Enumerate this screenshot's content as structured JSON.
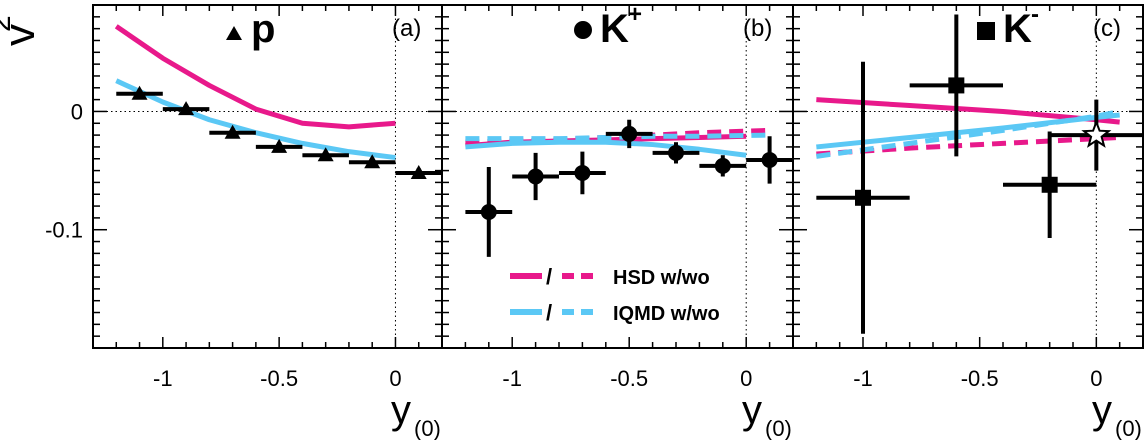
{
  "ylabel": {
    "main": "v",
    "sub": "2"
  },
  "xlabel": {
    "main": "y",
    "sub": "(0)"
  },
  "y_ticks": [
    {
      "value": 0,
      "label": "0"
    },
    {
      "value": -0.1,
      "label": "-0.1"
    }
  ],
  "x_ticks": [
    {
      "value": -1,
      "label": "-1"
    },
    {
      "value": -0.5,
      "label": "-0.5"
    },
    {
      "value": 0,
      "label": "0"
    }
  ],
  "legend": [
    {
      "label": "HSD w/wo",
      "separator": "/",
      "color": "#e8198b"
    },
    {
      "label": "IQMD w/wo",
      "separator": "/",
      "color": "#5bc8f5"
    }
  ],
  "colors": {
    "hsd": "#e8198b",
    "iqmd": "#5bc8f5",
    "data": "#000000"
  },
  "chart_data": [
    {
      "type": "scatter",
      "panel": "(a)",
      "particle": "p",
      "marker": "triangle",
      "xlim": [
        -1.3,
        0.2
      ],
      "ylim": [
        -0.2,
        0.09
      ],
      "points": [
        {
          "x": -1.1,
          "y": 0.015,
          "xerr": 0.1,
          "yerr": 0.004
        },
        {
          "x": -0.9,
          "y": 0.002,
          "xerr": 0.1,
          "yerr": 0.004
        },
        {
          "x": -0.7,
          "y": -0.018,
          "xerr": 0.1,
          "yerr": 0.004
        },
        {
          "x": -0.5,
          "y": -0.03,
          "xerr": 0.1,
          "yerr": 0.004
        },
        {
          "x": -0.3,
          "y": -0.037,
          "xerr": 0.1,
          "yerr": 0.004
        },
        {
          "x": -0.1,
          "y": -0.043,
          "xerr": 0.1,
          "yerr": 0.004
        },
        {
          "x": 0.1,
          "y": -0.052,
          "xerr": 0.1,
          "yerr": 0.004
        }
      ],
      "series": [
        {
          "model": "HSD",
          "style": "solid",
          "x": [
            -1.2,
            -1.0,
            -0.8,
            -0.6,
            -0.4,
            -0.2,
            0.0
          ],
          "y": [
            0.072,
            0.045,
            0.022,
            0.002,
            -0.01,
            -0.013,
            -0.01
          ]
        },
        {
          "model": "IQMD",
          "style": "solid",
          "x": [
            -1.2,
            -1.0,
            -0.8,
            -0.6,
            -0.4,
            -0.2,
            0.0
          ],
          "y": [
            0.026,
            0.008,
            -0.007,
            -0.018,
            -0.027,
            -0.034,
            -0.039
          ]
        }
      ]
    },
    {
      "type": "scatter",
      "panel": "(b)",
      "particle": "K",
      "charge": "+",
      "marker": "circle",
      "xlim": [
        -1.3,
        0.2
      ],
      "ylim": [
        -0.2,
        0.09
      ],
      "points": [
        {
          "x": -1.1,
          "y": -0.085,
          "xerr": 0.1,
          "yerr": 0.038
        },
        {
          "x": -0.9,
          "y": -0.055,
          "xerr": 0.1,
          "yerr": 0.02
        },
        {
          "x": -0.7,
          "y": -0.052,
          "xerr": 0.1,
          "yerr": 0.018
        },
        {
          "x": -0.5,
          "y": -0.019,
          "xerr": 0.1,
          "yerr": 0.012
        },
        {
          "x": -0.3,
          "y": -0.035,
          "xerr": 0.1,
          "yerr": 0.009
        },
        {
          "x": -0.1,
          "y": -0.046,
          "xerr": 0.1,
          "yerr": 0.009
        },
        {
          "x": 0.1,
          "y": -0.041,
          "xerr": 0.1,
          "yerr": 0.02
        }
      ],
      "series": [
        {
          "model": "HSD",
          "style": "solid",
          "x": [
            -1.2,
            -1.0,
            -0.8,
            -0.6,
            -0.4,
            -0.2,
            0.0
          ],
          "y": [
            -0.029,
            -0.026,
            -0.025,
            -0.024,
            -0.023,
            -0.022,
            -0.021
          ]
        },
        {
          "model": "HSD",
          "style": "dashed",
          "x": [
            -1.2,
            -1.0,
            -0.8,
            -0.6,
            -0.4,
            -0.2,
            0.1
          ],
          "y": [
            -0.026,
            -0.025,
            -0.024,
            -0.022,
            -0.02,
            -0.018,
            -0.016
          ]
        },
        {
          "model": "IQMD",
          "style": "solid",
          "x": [
            -1.2,
            -1.0,
            -0.8,
            -0.6,
            -0.4,
            -0.2,
            0.0
          ],
          "y": [
            -0.03,
            -0.027,
            -0.026,
            -0.026,
            -0.028,
            -0.032,
            -0.037
          ]
        },
        {
          "model": "IQMD",
          "style": "dashed",
          "x": [
            -1.2,
            -1.0,
            -0.8,
            -0.6,
            -0.4,
            -0.2,
            0.1
          ],
          "y": [
            -0.023,
            -0.023,
            -0.023,
            -0.022,
            -0.021,
            -0.021,
            -0.02
          ]
        }
      ]
    },
    {
      "type": "scatter",
      "panel": "(c)",
      "particle": "K",
      "charge": "-",
      "marker": "square",
      "xlim": [
        -1.3,
        0.2
      ],
      "ylim": [
        -0.2,
        0.09
      ],
      "points": [
        {
          "x": -1.0,
          "y": -0.073,
          "xerr": 0.2,
          "yerr": 0.115
        },
        {
          "x": -0.6,
          "y": 0.022,
          "xerr": 0.2,
          "yerr": 0.06
        },
        {
          "x": -0.2,
          "y": -0.062,
          "xerr": 0.2,
          "yerr": 0.045
        }
      ],
      "open_points": [
        {
          "x": 0.0,
          "y": -0.02,
          "xerr": 0.2,
          "yerr": 0.03,
          "marker": "star"
        }
      ],
      "series": [
        {
          "model": "HSD",
          "style": "solid",
          "x": [
            -1.2,
            -0.8,
            -0.4,
            0.0,
            0.1
          ],
          "y": [
            0.01,
            0.005,
            0.0,
            -0.007,
            -0.009
          ]
        },
        {
          "model": "HSD",
          "style": "dashed",
          "x": [
            -1.2,
            -0.8,
            -0.4,
            0.0,
            0.1
          ],
          "y": [
            -0.036,
            -0.031,
            -0.027,
            -0.023,
            -0.022
          ]
        },
        {
          "model": "IQMD",
          "style": "solid",
          "x": [
            -1.2,
            -0.8,
            -0.4,
            0.0,
            0.1
          ],
          "y": [
            -0.03,
            -0.022,
            -0.014,
            -0.005,
            -0.003
          ]
        },
        {
          "model": "IQMD",
          "style": "dashed",
          "x": [
            -1.2,
            -0.8,
            -0.4,
            0.0,
            0.1
          ],
          "y": [
            -0.038,
            -0.027,
            -0.016,
            -0.004,
            0.0
          ]
        }
      ]
    }
  ]
}
